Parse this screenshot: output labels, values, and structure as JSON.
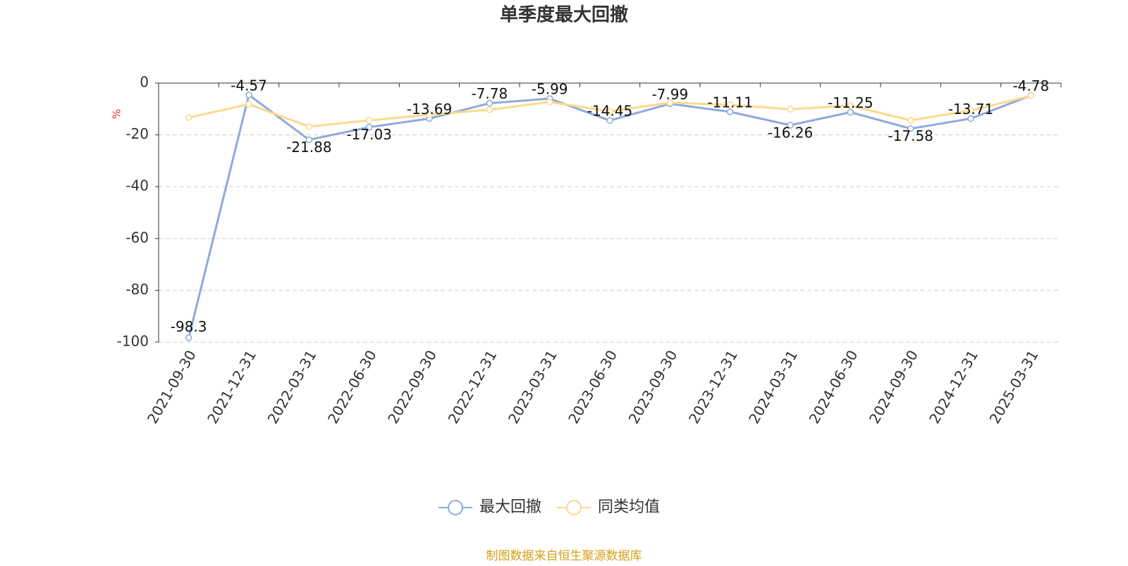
{
  "chart_data": {
    "type": "line",
    "title": "单季度最大回撤",
    "y_label": "%",
    "categories": [
      "2021-09-30",
      "2021-12-31",
      "2022-03-31",
      "2022-06-30",
      "2022-09-30",
      "2022-12-31",
      "2023-03-31",
      "2023-06-30",
      "2023-09-30",
      "2023-12-31",
      "2024-03-31",
      "2024-06-30",
      "2024-09-30",
      "2024-12-31",
      "2025-03-31"
    ],
    "series": [
      {
        "name": "最大回撤",
        "color": "#8eaadb",
        "values": [
          -98.3,
          -4.57,
          -21.88,
          -17.03,
          -13.69,
          -7.78,
          -5.99,
          -14.45,
          -7.99,
          -11.11,
          -16.26,
          -11.25,
          -17.58,
          -13.71,
          -4.78
        ]
      },
      {
        "name": "同类均值",
        "color": "#fbd98d",
        "values": [
          -13.3,
          -8.2,
          -16.8,
          -14.4,
          -12.2,
          -10.3,
          -7.3,
          -10.9,
          -7.6,
          -8.4,
          -10.1,
          -8.7,
          -14.4,
          -10.6,
          -4.9
        ]
      }
    ],
    "ylim": [
      -100,
      0
    ],
    "yticks": [
      -100,
      -80,
      -60,
      -40,
      -20,
      0
    ],
    "grid": true,
    "source": "制图数据来自恒生聚源数据库"
  }
}
